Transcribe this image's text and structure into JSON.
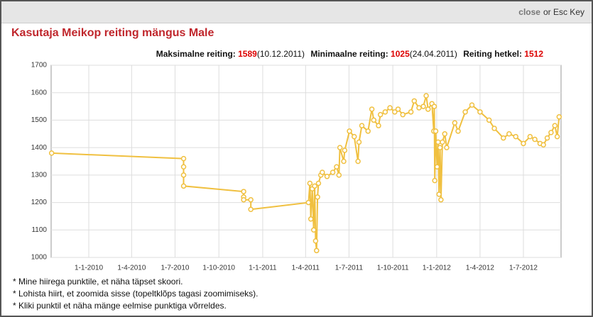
{
  "header": {
    "close": "close",
    "close_suffix": "or Esc Key"
  },
  "title": "Kasutaja Meikop reiting mängus Male",
  "stats": {
    "max_label": "Maksimalne reiting:",
    "max_value": 1589,
    "max_date": "(10.12.2011)",
    "min_label": "Minimaalne reiting:",
    "min_value": 1025,
    "min_date": "(24.04.2011)",
    "current_label": "Reiting hetkel:",
    "current_value": 1512
  },
  "chart_data": {
    "type": "line",
    "color": "#f0c040",
    "grid": true,
    "x": [
      "2009-10-15",
      "2010-07-19",
      "2010-07-19",
      "2010-07-19",
      "2010-07-19",
      "2010-11-22",
      "2010-11-22",
      "2010-11-22",
      "2010-12-07",
      "2010-12-07",
      "2011-04-07",
      "2011-04-10",
      "2011-04-12",
      "2011-04-15",
      "2011-04-18",
      "2011-04-20",
      "2011-04-22",
      "2011-04-24",
      "2011-04-26",
      "2011-04-28",
      "2011-05-03",
      "2011-05-06",
      "2011-05-16",
      "2011-05-28",
      "2011-06-05",
      "2011-06-10",
      "2011-06-12",
      "2011-06-20",
      "2011-06-22",
      "2011-07-02",
      "2011-07-12",
      "2011-07-20",
      "2011-07-22",
      "2011-07-28",
      "2011-08-10",
      "2011-08-18",
      "2011-08-22",
      "2011-09-01",
      "2011-09-05",
      "2011-09-15",
      "2011-09-25",
      "2011-10-05",
      "2011-10-12",
      "2011-10-22",
      "2011-11-08",
      "2011-11-15",
      "2011-11-25",
      "2011-12-04",
      "2011-12-10",
      "2011-12-14",
      "2011-12-22",
      "2011-12-26",
      "2011-12-27",
      "2011-12-28",
      "2011-12-30",
      "2012-01-02",
      "2012-01-04",
      "2012-01-06",
      "2012-01-08",
      "2012-01-10",
      "2012-01-13",
      "2012-01-18",
      "2012-01-22",
      "2012-02-08",
      "2012-02-15",
      "2012-03-01",
      "2012-03-15",
      "2012-04-01",
      "2012-04-20",
      "2012-05-01",
      "2012-05-20",
      "2012-06-01",
      "2012-06-15",
      "2012-07-01",
      "2012-07-15",
      "2012-07-25",
      "2012-08-05",
      "2012-08-12",
      "2012-08-20",
      "2012-08-28",
      "2012-09-05",
      "2012-09-10",
      "2012-09-14"
    ],
    "values": [
      1380,
      1360,
      1330,
      1300,
      1260,
      1240,
      1220,
      1210,
      1210,
      1175,
      1200,
      1270,
      1140,
      1250,
      1100,
      1260,
      1060,
      1025,
      1220,
      1270,
      1300,
      1310,
      1295,
      1310,
      1330,
      1300,
      1400,
      1350,
      1390,
      1460,
      1440,
      1350,
      1420,
      1480,
      1460,
      1540,
      1500,
      1480,
      1520,
      1530,
      1545,
      1530,
      1540,
      1520,
      1530,
      1570,
      1545,
      1550,
      1589,
      1540,
      1560,
      1460,
      1550,
      1280,
      1460,
      1330,
      1420,
      1230,
      1400,
      1210,
      1420,
      1450,
      1400,
      1490,
      1460,
      1530,
      1555,
      1530,
      1500,
      1470,
      1435,
      1450,
      1440,
      1415,
      1440,
      1430,
      1415,
      1410,
      1435,
      1455,
      1480,
      1440,
      1512
    ],
    "xlim": [
      "2009-10-14",
      "2012-09-18"
    ],
    "xticks": [
      {
        "value": "2010-01-01",
        "label": "1-1-2010"
      },
      {
        "value": "2010-04-01",
        "label": "1-4-2010"
      },
      {
        "value": "2010-07-01",
        "label": "1-7-2010"
      },
      {
        "value": "2010-10-01",
        "label": "1-10-2010"
      },
      {
        "value": "2011-01-01",
        "label": "1-1-2011"
      },
      {
        "value": "2011-04-01",
        "label": "1-4-2011"
      },
      {
        "value": "2011-07-01",
        "label": "1-7-2011"
      },
      {
        "value": "2011-10-01",
        "label": "1-10-2011"
      },
      {
        "value": "2012-01-01",
        "label": "1-1-2012"
      },
      {
        "value": "2012-04-01",
        "label": "1-4-2012"
      },
      {
        "value": "2012-07-01",
        "label": "1-7-2012"
      }
    ],
    "ylim": [
      1000,
      1700
    ],
    "yticks": [
      1000,
      1100,
      1200,
      1300,
      1400,
      1500,
      1600,
      1700
    ]
  },
  "notes": [
    "* Mine hiirega punktile, et näha täpset skoori.",
    "* Lohista hiirt, et zoomida sisse (topeltklõps tagasi zoomimiseks).",
    "* Kliki punktil et näha mänge eelmise punktiga võrreldes."
  ]
}
